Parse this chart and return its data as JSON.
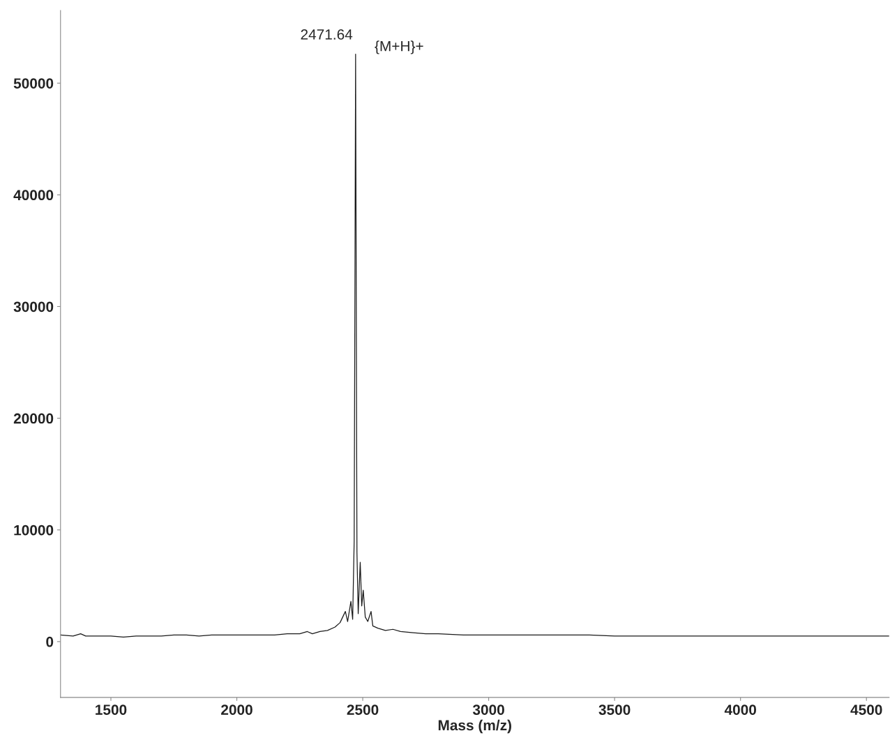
{
  "chart_data": {
    "type": "line",
    "xlabel": "Mass (m/z)",
    "annotations": [
      {
        "text": "2471.64",
        "x": 2471.64,
        "y": 52600
      },
      {
        "text": "{M+H}+",
        "x": 2471.64,
        "y": 52600
      }
    ],
    "series": [
      {
        "color": "#1a1a1a",
        "x": [
          1300,
          1350,
          1380,
          1400,
          1450,
          1500,
          1550,
          1600,
          1650,
          1700,
          1750,
          1800,
          1850,
          1900,
          1950,
          2000,
          2050,
          2100,
          2150,
          2200,
          2250,
          2280,
          2300,
          2330,
          2360,
          2390,
          2410,
          2431,
          2440,
          2453,
          2460,
          2466,
          2471.64,
          2477,
          2482,
          2490,
          2496,
          2502,
          2510,
          2520,
          2533,
          2540,
          2560,
          2590,
          2620,
          2650,
          2700,
          2750,
          2800,
          2900,
          3000,
          3100,
          3200,
          3300,
          3400,
          3500,
          3600,
          3700,
          3800,
          3900,
          4000,
          4100,
          4200,
          4300,
          4400,
          4500,
          4590
        ],
        "values": [
          600,
          500,
          700,
          500,
          500,
          500,
          400,
          500,
          500,
          500,
          600,
          600,
          500,
          600,
          600,
          600,
          600,
          600,
          600,
          700,
          700,
          900,
          700,
          900,
          1000,
          1300,
          1700,
          2700,
          1800,
          3600,
          2000,
          9000,
          52600,
          8000,
          2500,
          7100,
          3200,
          4600,
          2200,
          1800,
          2700,
          1400,
          1200,
          1000,
          1100,
          900,
          800,
          700,
          700,
          600,
          600,
          600,
          600,
          600,
          600,
          500,
          500,
          500,
          500,
          500,
          500,
          500,
          500,
          500,
          500,
          500,
          500
        ]
      }
    ],
    "xlim": [
      1300,
      4590
    ],
    "ylim": [
      -5000,
      56500
    ],
    "xticks": [
      1500,
      2000,
      2500,
      3000,
      3500,
      4000,
      4500
    ],
    "yticks": [
      0,
      10000,
      20000,
      30000,
      40000,
      50000
    ],
    "grid": false,
    "marker": "none",
    "line_style": "solid"
  }
}
